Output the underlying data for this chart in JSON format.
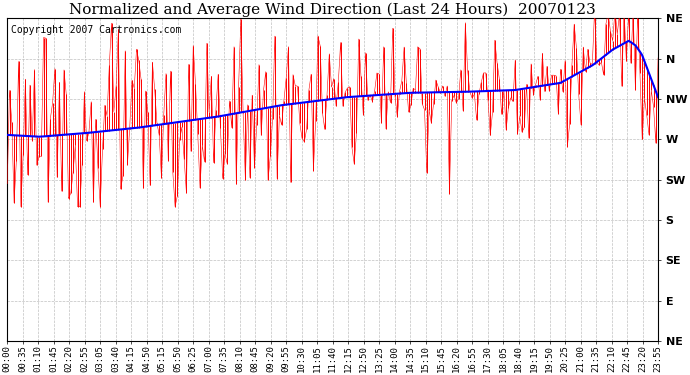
{
  "title": "Normalized and Average Wind Direction (Last 24 Hours)  20070123",
  "copyright": "Copyright 2007 Cartronics.com",
  "background_color": "#ffffff",
  "plot_bg_color": "#ffffff",
  "grid_color": "#b0b0b0",
  "ytick_labels": [
    "NE",
    "N",
    "NW",
    "W",
    "SW",
    "S",
    "SE",
    "E",
    "NE"
  ],
  "ytick_values": [
    360,
    315,
    270,
    225,
    180,
    135,
    90,
    45,
    0
  ],
  "ylim": [
    0,
    360
  ],
  "red_line_color": "#ff0000",
  "blue_line_color": "#0000ff",
  "title_fontsize": 11,
  "copyright_fontsize": 7,
  "xtick_fontsize": 6.5,
  "ytick_fontsize": 8,
  "xtick_labels": [
    "00:00",
    "00:35",
    "01:10",
    "01:45",
    "02:20",
    "02:55",
    "03:05",
    "03:40",
    "04:15",
    "04:50",
    "05:15",
    "05:50",
    "06:25",
    "07:00",
    "07:35",
    "08:10",
    "08:45",
    "09:20",
    "09:55",
    "10:30",
    "11:05",
    "11:40",
    "12:15",
    "12:50",
    "13:25",
    "14:00",
    "14:35",
    "15:10",
    "15:45",
    "16:20",
    "16:55",
    "17:30",
    "18:05",
    "18:40",
    "19:15",
    "19:50",
    "20:25",
    "21:00",
    "21:35",
    "22:10",
    "22:45",
    "23:20",
    "23:55"
  ]
}
